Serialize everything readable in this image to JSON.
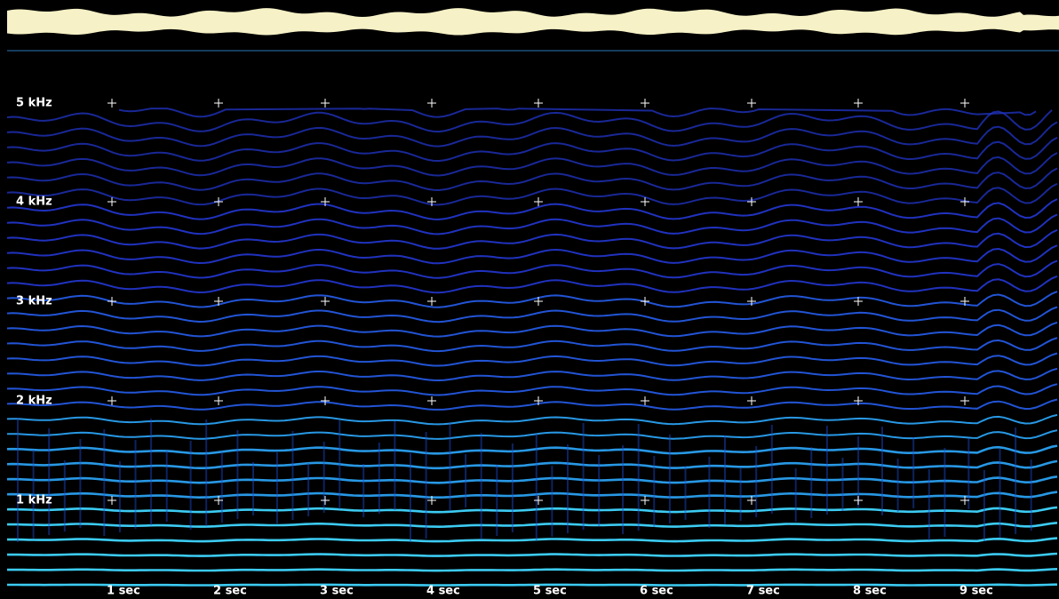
{
  "frequency_labels": [
    "5 kHz",
    "4 kHz",
    "3 kHz",
    "2 kHz",
    "1 kHz"
  ],
  "time_labels": [
    "1 sec",
    "2 sec",
    "3 sec",
    "4 sec",
    "5 sec",
    "6 sec",
    "7 sec",
    "8 sec",
    "9 sec"
  ]
}
